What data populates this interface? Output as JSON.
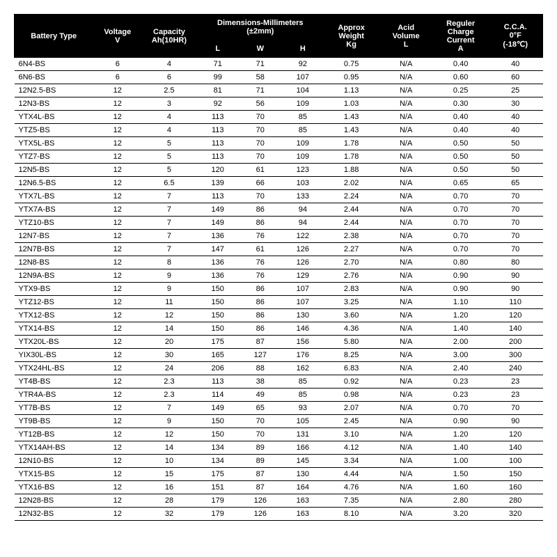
{
  "headers": {
    "battery_type": "Battery Type",
    "voltage": "Voltage\nV",
    "capacity": "Capacity\nAh(10HR)",
    "dimensions": "Dimensions-Millimeters\n(±2mm)",
    "dim_l": "L",
    "dim_w": "W",
    "dim_h": "H",
    "weight": "Approx\nWeight\nKg",
    "acid": "Acid\nVolume\nL",
    "charge": "Reguler\nCharge\nCurrent\nA",
    "cca": "C.C.A.\n0°F\n(-18℃)"
  },
  "rows": [
    [
      "6N4-BS",
      "6",
      "4",
      "71",
      "71",
      "92",
      "0.75",
      "N/A",
      "0.40",
      "40"
    ],
    [
      "6N6-BS",
      "6",
      "6",
      "99",
      "58",
      "107",
      "0.95",
      "N/A",
      "0.60",
      "60"
    ],
    [
      "12N2.5-BS",
      "12",
      "2.5",
      "81",
      "71",
      "104",
      "1.13",
      "N/A",
      "0.25",
      "25"
    ],
    [
      "12N3-BS",
      "12",
      "3",
      "92",
      "56",
      "109",
      "1.03",
      "N/A",
      "0.30",
      "30"
    ],
    [
      "YTX4L-BS",
      "12",
      "4",
      "113",
      "70",
      "85",
      "1.43",
      "N/A",
      "0.40",
      "40"
    ],
    [
      "YTZ5-BS",
      "12",
      "4",
      "113",
      "70",
      "85",
      "1.43",
      "N/A",
      "0.40",
      "40"
    ],
    [
      "YTX5L-BS",
      "12",
      "5",
      "113",
      "70",
      "109",
      "1.78",
      "N/A",
      "0.50",
      "50"
    ],
    [
      "YTZ7-BS",
      "12",
      "5",
      "113",
      "70",
      "109",
      "1.78",
      "N/A",
      "0.50",
      "50"
    ],
    [
      "12N5-BS",
      "12",
      "5",
      "120",
      "61",
      "123",
      "1.88",
      "N/A",
      "0.50",
      "50"
    ],
    [
      "12N6.5-BS",
      "12",
      "6.5",
      "139",
      "66",
      "103",
      "2.02",
      "N/A",
      "0.65",
      "65"
    ],
    [
      "YTX7L-BS",
      "12",
      "7",
      "113",
      "70",
      "133",
      "2.24",
      "N/A",
      "0.70",
      "70"
    ],
    [
      "YTX7A-BS",
      "12",
      "7",
      "149",
      "86",
      "94",
      "2.44",
      "N/A",
      "0.70",
      "70"
    ],
    [
      "YTZ10-BS",
      "12",
      "7",
      "149",
      "86",
      "94",
      "2.44",
      "N/A",
      "0.70",
      "70"
    ],
    [
      "12N7-BS",
      "12",
      "7",
      "136",
      "76",
      "122",
      "2.38",
      "N/A",
      "0.70",
      "70"
    ],
    [
      "12N7B-BS",
      "12",
      "7",
      "147",
      "61",
      "126",
      "2.27",
      "N/A",
      "0.70",
      "70"
    ],
    [
      "12N8-BS",
      "12",
      "8",
      "136",
      "76",
      "126",
      "2.70",
      "N/A",
      "0.80",
      "80"
    ],
    [
      "12N9A-BS",
      "12",
      "9",
      "136",
      "76",
      "129",
      "2.76",
      "N/A",
      "0.90",
      "90"
    ],
    [
      "YTX9-BS",
      "12",
      "9",
      "150",
      "86",
      "107",
      "2.83",
      "N/A",
      "0.90",
      "90"
    ],
    [
      "YTZ12-BS",
      "12",
      "11",
      "150",
      "86",
      "107",
      "3.25",
      "N/A",
      "1.10",
      "110"
    ],
    [
      "YTX12-BS",
      "12",
      "12",
      "150",
      "86",
      "130",
      "3.60",
      "N/A",
      "1.20",
      "120"
    ],
    [
      "YTX14-BS",
      "12",
      "14",
      "150",
      "86",
      "146",
      "4.36",
      "N/A",
      "1.40",
      "140"
    ],
    [
      "YTX20L-BS",
      "12",
      "20",
      "175",
      "87",
      "156",
      "5.80",
      "N/A",
      "2.00",
      "200"
    ],
    [
      "YIX30L-BS",
      "12",
      "30",
      "165",
      "127",
      "176",
      "8.25",
      "N/A",
      "3.00",
      "300"
    ],
    [
      "YTX24HL-BS",
      "12",
      "24",
      "206",
      "88",
      "162",
      "6.83",
      "N/A",
      "2.40",
      "240"
    ],
    [
      "YT4B-BS",
      "12",
      "2.3",
      "113",
      "38",
      "85",
      "0.92",
      "N/A",
      "0.23",
      "23"
    ],
    [
      "YTR4A-BS",
      "12",
      "2.3",
      "114",
      "49",
      "85",
      "0.98",
      "N/A",
      "0.23",
      "23"
    ],
    [
      "YT7B-BS",
      "12",
      "7",
      "149",
      "65",
      "93",
      "2.07",
      "N/A",
      "0.70",
      "70"
    ],
    [
      "YT9B-BS",
      "12",
      "9",
      "150",
      "70",
      "105",
      "2.45",
      "N/A",
      "0.90",
      "90"
    ],
    [
      "YT12B-BS",
      "12",
      "12",
      "150",
      "70",
      "131",
      "3.10",
      "N/A",
      "1.20",
      "120"
    ],
    [
      "YTX14AH-BS",
      "12",
      "14",
      "134",
      "89",
      "166",
      "4.12",
      "N/A",
      "1.40",
      "140"
    ],
    [
      "12N10-BS",
      "12",
      "10",
      "134",
      "89",
      "145",
      "3.34",
      "N/A",
      "1.00",
      "100"
    ],
    [
      "YTX15-BS",
      "12",
      "15",
      "175",
      "87",
      "130",
      "4.44",
      "N/A",
      "1.50",
      "150"
    ],
    [
      "YTX16-BS",
      "12",
      "16",
      "151",
      "87",
      "164",
      "4.76",
      "N/A",
      "1.60",
      "160"
    ],
    [
      "12N28-BS",
      "12",
      "28",
      "179",
      "126",
      "163",
      "7.35",
      "N/A",
      "2.80",
      "280"
    ],
    [
      "12N32-BS",
      "12",
      "32",
      "179",
      "126",
      "163",
      "8.10",
      "N/A",
      "3.20",
      "320"
    ]
  ]
}
